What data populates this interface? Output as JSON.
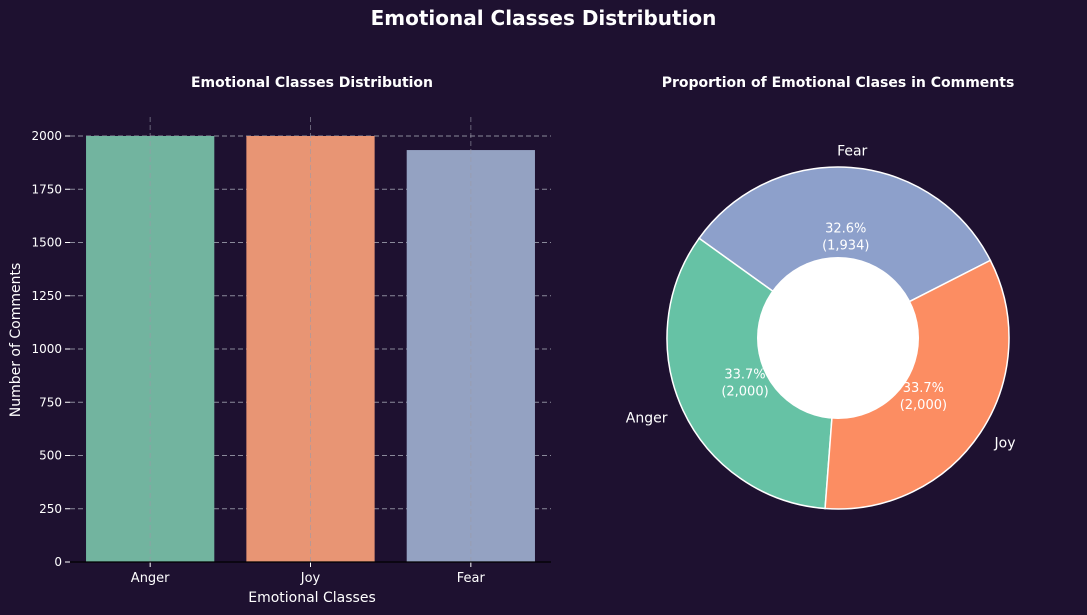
{
  "figure": {
    "suptitle": "Emotional Classes Distribution",
    "background": "#1e1130"
  },
  "chart_data": [
    {
      "type": "bar",
      "title": "Emotional Classes Distribution",
      "xlabel": "Emotional Classes",
      "ylabel": "Number of Comments",
      "categories": [
        "Anger",
        "Joy",
        "Fear"
      ],
      "values": [
        2000,
        2000,
        1934
      ],
      "colors": [
        "#72b49f",
        "#e89574",
        "#94a2c2"
      ],
      "ylim": [
        0,
        2000
      ],
      "yticks": [
        0,
        250,
        500,
        750,
        1000,
        1250,
        1500,
        1750,
        2000
      ],
      "ytick_labels": [
        "0",
        "250",
        "500",
        "750",
        "1000",
        "1250",
        "1500",
        "1750",
        "2000"
      ],
      "grid": true
    },
    {
      "type": "pie",
      "title": "Proportion of Emotional Clases in Comments",
      "donut": true,
      "labels": [
        "Fear",
        "Anger",
        "Joy"
      ],
      "values": [
        1934,
        2000,
        2000
      ],
      "percent_labels": [
        "32.6%",
        "33.7%",
        "33.7%"
      ],
      "count_labels": [
        "(1,934)",
        "(2,000)",
        "(2,000)"
      ],
      "colors": [
        "#8da0cb",
        "#66c2a5",
        "#fc8d62"
      ]
    }
  ]
}
